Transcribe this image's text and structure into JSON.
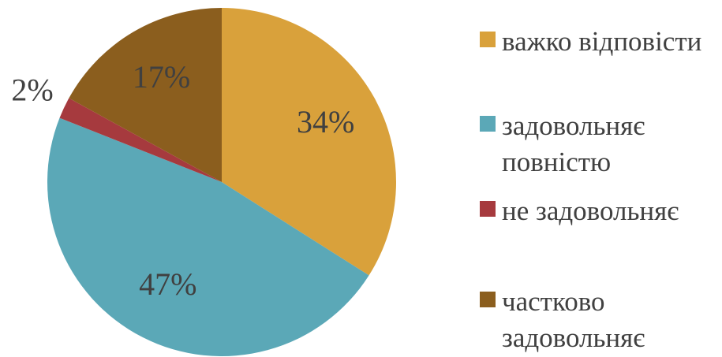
{
  "chart_data": {
    "type": "pie",
    "categories": [
      "важко відповісти",
      "задовольняє повністю",
      "не задовольняє",
      "частково задовольняє"
    ],
    "values": [
      34,
      47,
      2,
      17
    ],
    "value_labels": [
      "34%",
      "47%",
      "2%",
      "17%"
    ],
    "colors": [
      "#d9a13b",
      "#5ba8b7",
      "#a63a3e",
      "#8b5e1e"
    ],
    "legend": "right"
  }
}
